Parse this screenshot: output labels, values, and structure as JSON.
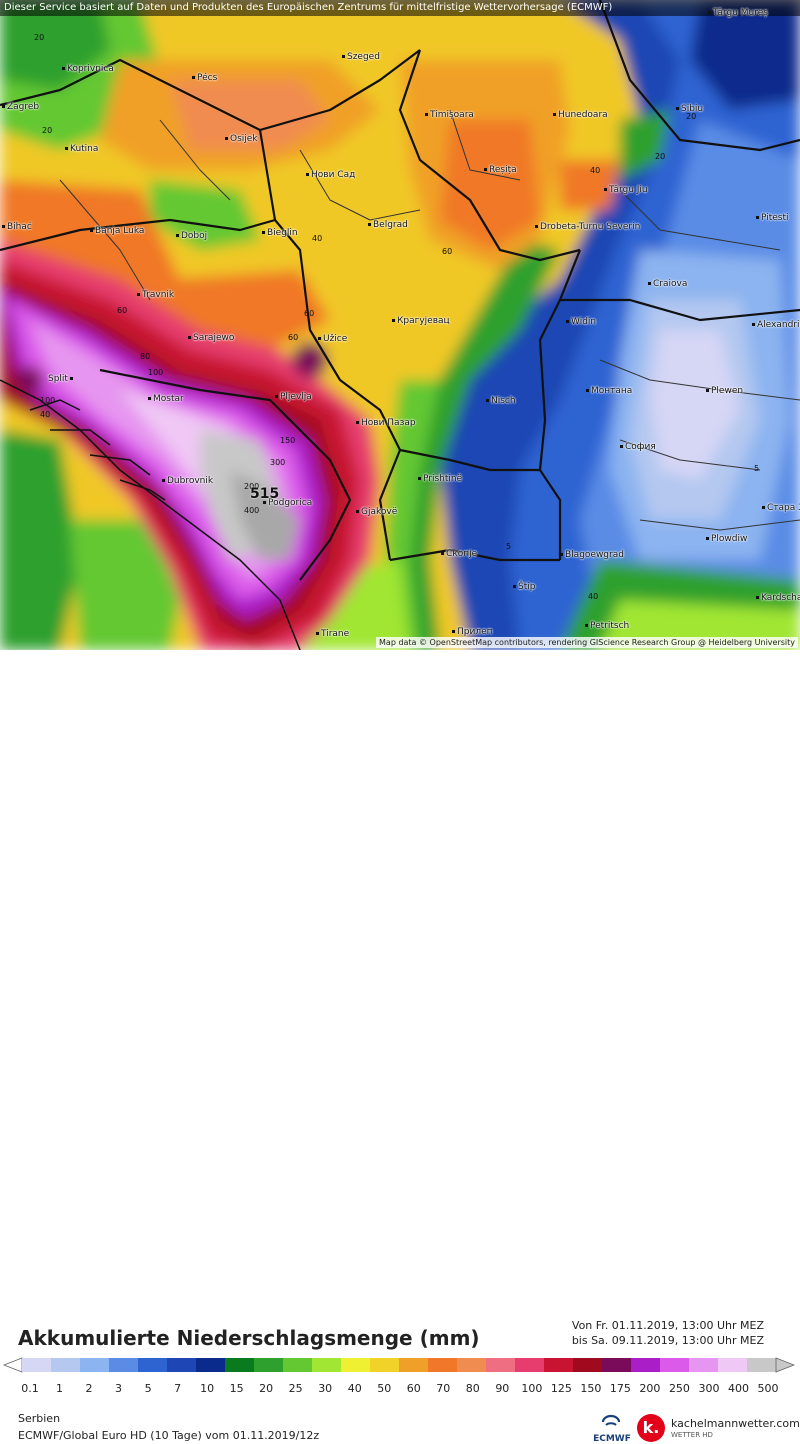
{
  "banner": "Dieser Service basiert auf Daten und Produkten des Europäischen Zentrums für mittelfristige Wettervorhersage (ECMWF)",
  "credit": "Map data © OpenStreetMap contributors, rendering GIScience Research Group @ Heidelberg University",
  "title": "Akkumulierte Niederschlagsmenge (mm)",
  "period_from": "Von Fr. 01.11.2019, 13:00 Uhr MEZ",
  "period_to": "bis Sa. 09.11.2019, 13:00 Uhr MEZ",
  "region": "Serbien",
  "model": "ECMWF/Global Euro HD (10 Tage) vom 01.11.2019/12z",
  "ecmwf_label": "ECMWF",
  "brand_name": "kachelmannwetter.com",
  "brand_sub": "WETTER HD",
  "brand_letter": "k.",
  "max_value": "515",
  "colors": {
    "scale": [
      "#d6d6f5",
      "#b4c8f0",
      "#8cb4f0",
      "#5a8ce6",
      "#2e64d2",
      "#1e46b4",
      "#0a2a8c",
      "#0a7a1e",
      "#2da02d",
      "#64c832",
      "#a0e632",
      "#f0f032",
      "#f0d228",
      "#f0a028",
      "#f07828",
      "#f08c50",
      "#f06e82",
      "#e63c6e",
      "#c81432",
      "#a00a1e",
      "#7a0a5a",
      "#aa1ec8",
      "#dc5aea",
      "#e696f0",
      "#f0c8f5",
      "#c8c8c8"
    ]
  },
  "scale_ticks": [
    "0.1",
    "1",
    "2",
    "3",
    "5",
    "7",
    "10",
    "15",
    "20",
    "25",
    "30",
    "40",
    "50",
    "60",
    "70",
    "80",
    "90",
    "100",
    "125",
    "150",
    "175",
    "200",
    "250",
    "300",
    "400",
    "500"
  ],
  "cities": [
    {
      "name": "Koprivnica"
    },
    {
      "name": "Zagreb"
    },
    {
      "name": "Pécs"
    },
    {
      "name": "Szeged"
    },
    {
      "name": "Osijek"
    },
    {
      "name": "Kutina"
    },
    {
      "name": "Нови Сад"
    },
    {
      "name": "Timișoara"
    },
    {
      "name": "Hunedoara"
    },
    {
      "name": "Sibiu"
    },
    {
      "name": "Târgu Mureș"
    },
    {
      "name": "Reșița"
    },
    {
      "name": "Târgu Jiu"
    },
    {
      "name": "Banja Luka"
    },
    {
      "name": "Doboj"
    },
    {
      "name": "Bieglin"
    },
    {
      "name": "Belgrad"
    },
    {
      "name": "Drobeta-Turnu Severin"
    },
    {
      "name": "Pitesti"
    },
    {
      "name": "Bihać"
    },
    {
      "name": "Travnik"
    },
    {
      "name": "Craiova"
    },
    {
      "name": "Sarajewo"
    },
    {
      "name": "Крагујевац"
    },
    {
      "name": "Widin"
    },
    {
      "name": "Užice"
    },
    {
      "name": "Alexandria"
    },
    {
      "name": "Split"
    },
    {
      "name": "Mostar"
    },
    {
      "name": "Pljevlja"
    },
    {
      "name": "Nisch"
    },
    {
      "name": "Монтана"
    },
    {
      "name": "Plewen"
    },
    {
      "name": "Нови Пазар"
    },
    {
      "name": "София"
    },
    {
      "name": "Dubrovnik"
    },
    {
      "name": "Prishtinë"
    },
    {
      "name": "Podgorica"
    },
    {
      "name": "Gjakovë"
    },
    {
      "name": "Plowdiw"
    },
    {
      "name": "Стара Загора"
    },
    {
      "name": "Скопје"
    },
    {
      "name": "Blagoewgrad"
    },
    {
      "name": "Štip"
    },
    {
      "name": "Kardschali"
    },
    {
      "name": "Tirane"
    },
    {
      "name": "Прилеп"
    },
    {
      "name": "Petritsch"
    }
  ],
  "contours": [
    "20",
    "20",
    "20",
    "20",
    "40",
    "40",
    "40",
    "60",
    "60",
    "60",
    "60",
    "80",
    "100",
    "150",
    "100",
    "200",
    "300",
    "400",
    "5",
    "5",
    "40"
  ]
}
